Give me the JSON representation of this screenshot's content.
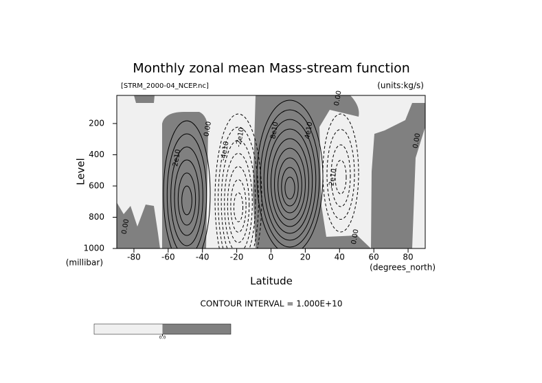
{
  "chart_data": {
    "type": "contour",
    "title": "Monthly zonal mean Mass-stream function",
    "subtitle": "[STRM_2000-04_NCEP.nc]",
    "units": "(units:kg/s)",
    "x_label": "Latitude",
    "y_label": "Level",
    "x_unit": "(degrees_north)",
    "y_unit": "(millibar)",
    "xlim": [
      -90,
      90
    ],
    "xticks": [
      -80,
      -60,
      -40,
      -20,
      0,
      20,
      40,
      60,
      80
    ],
    "ylim": [
      1000,
      20
    ],
    "yticks": [
      200,
      400,
      600,
      800,
      1000
    ],
    "contour_interval": "CONTOUR INTERVAL = 1.000E+10",
    "contour_labels": [
      {
        "x": -55,
        "y": 420,
        "value": 20000000000,
        "label": "2e10"
      },
      {
        "x": -37,
        "y": 235,
        "value": 0,
        "label": "0.00"
      },
      {
        "x": -27,
        "y": 376,
        "value": -40000000000,
        "label": "-4e10"
      },
      {
        "x": -18,
        "y": 288,
        "value": -20000000000,
        "label": "-2e10"
      },
      {
        "x": 2,
        "y": 244,
        "value": 80000000000,
        "label": "8e10"
      },
      {
        "x": 22,
        "y": 244,
        "value": 40000000000,
        "label": "4e10"
      },
      {
        "x": 36,
        "y": 552,
        "value": -20000000000,
        "label": "-2e10"
      },
      {
        "x": 39,
        "y": 38,
        "value": 0,
        "label": "0.00"
      },
      {
        "x": 49,
        "y": 925,
        "value": 0,
        "label": "0.00"
      },
      {
        "x": 85,
        "y": 310,
        "value": 0,
        "label": "0.00"
      },
      {
        "x": -85,
        "y": 860,
        "value": 0,
        "label": "0.00"
      }
    ],
    "colorbar": {
      "colors": [
        "#f0f0f0",
        "#808080"
      ],
      "ticks": [
        {
          "value": 0,
          "label": "0.0"
        }
      ]
    }
  }
}
